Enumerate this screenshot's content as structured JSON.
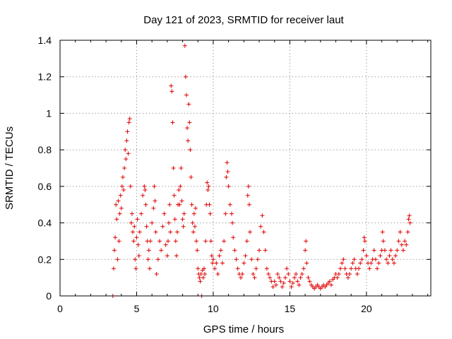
{
  "chart_data": {
    "type": "scatter",
    "title": "Day 121 of 2023, SRMTID for receiver laut",
    "xlabel": "GPS time / hours",
    "ylabel": "SRMTID / TECUs",
    "xlim": [
      0,
      24.2
    ],
    "ylim": [
      0,
      1.4
    ],
    "x_ticks": [
      0,
      5,
      10,
      15,
      20
    ],
    "x_tick_labels": [
      "0",
      "5",
      "10",
      "15",
      "20"
    ],
    "y_ticks": [
      0,
      0.2,
      0.4,
      0.6,
      0.8,
      1.0,
      1.2,
      1.4
    ],
    "y_tick_labels": [
      "0",
      "0.2",
      "0.4",
      "0.6",
      "0.8",
      "1",
      "1.2",
      "1.4"
    ],
    "grid": true,
    "marker": "+",
    "series": [
      {
        "name": "SRMTID",
        "color": "#e00000",
        "points": [
          [
            3.45,
            0.0
          ],
          [
            3.5,
            0.15
          ],
          [
            3.55,
            0.25
          ],
          [
            3.6,
            0.32
          ],
          [
            3.65,
            0.5
          ],
          [
            3.7,
            0.42
          ],
          [
            3.75,
            0.2
          ],
          [
            3.8,
            0.52
          ],
          [
            3.85,
            0.3
          ],
          [
            3.9,
            0.45
          ],
          [
            3.95,
            0.55
          ],
          [
            4.0,
            0.48
          ],
          [
            4.05,
            0.6
          ],
          [
            4.1,
            0.65
          ],
          [
            4.15,
            0.58
          ],
          [
            4.2,
            0.7
          ],
          [
            4.25,
            0.8
          ],
          [
            4.3,
            0.75
          ],
          [
            4.35,
            0.85
          ],
          [
            4.4,
            0.9
          ],
          [
            4.45,
            0.78
          ],
          [
            4.5,
            0.95
          ],
          [
            4.55,
            0.97
          ],
          [
            4.6,
            0.6
          ],
          [
            4.65,
            0.4
          ],
          [
            4.7,
            0.45
          ],
          [
            4.75,
            0.35
          ],
          [
            4.8,
            0.3
          ],
          [
            4.85,
            0.38
          ],
          [
            4.9,
            0.2
          ],
          [
            4.95,
            0.15
          ],
          [
            5.0,
            0.32
          ],
          [
            5.05,
            0.42
          ],
          [
            5.1,
            0.28
          ],
          [
            5.15,
            0.22
          ],
          [
            5.2,
            0.35
          ],
          [
            5.3,
            0.45
          ],
          [
            5.4,
            0.55
          ],
          [
            5.5,
            0.6
          ],
          [
            5.55,
            0.58
          ],
          [
            5.6,
            0.5
          ],
          [
            5.65,
            0.38
          ],
          [
            5.7,
            0.3
          ],
          [
            5.75,
            0.2
          ],
          [
            5.8,
            0.25
          ],
          [
            5.85,
            0.15
          ],
          [
            5.9,
            0.3
          ],
          [
            6.0,
            0.4
          ],
          [
            6.1,
            0.48
          ],
          [
            6.15,
            0.6
          ],
          [
            6.2,
            0.52
          ],
          [
            6.25,
            0.35
          ],
          [
            6.3,
            0.12
          ],
          [
            6.4,
            0.2
          ],
          [
            6.5,
            0.3
          ],
          [
            6.6,
            0.25
          ],
          [
            6.7,
            0.38
          ],
          [
            6.8,
            0.45
          ],
          [
            6.9,
            0.28
          ],
          [
            7.0,
            0.22
          ],
          [
            7.05,
            0.3
          ],
          [
            7.1,
            0.4
          ],
          [
            7.15,
            0.5
          ],
          [
            7.2,
            0.35
          ],
          [
            7.25,
            1.15
          ],
          [
            7.3,
            1.12
          ],
          [
            7.35,
            0.95
          ],
          [
            7.4,
            0.7
          ],
          [
            7.45,
            0.55
          ],
          [
            7.5,
            0.42
          ],
          [
            7.55,
            0.3
          ],
          [
            7.6,
            0.22
          ],
          [
            7.65,
            0.35
          ],
          [
            7.7,
            0.5
          ],
          [
            7.75,
            0.58
          ],
          [
            7.8,
            0.5
          ],
          [
            7.85,
            0.6
          ],
          [
            7.9,
            0.7
          ],
          [
            7.95,
            0.52
          ],
          [
            8.0,
            0.42
          ],
          [
            8.05,
            0.38
          ],
          [
            8.1,
            0.45
          ],
          [
            8.15,
            1.37
          ],
          [
            8.2,
            1.2
          ],
          [
            8.25,
            1.1
          ],
          [
            8.3,
            0.92
          ],
          [
            8.35,
            0.85
          ],
          [
            8.4,
            1.05
          ],
          [
            8.45,
            0.95
          ],
          [
            8.5,
            0.8
          ],
          [
            8.55,
            0.65
          ],
          [
            8.6,
            0.5
          ],
          [
            8.65,
            0.4
          ],
          [
            8.7,
            0.35
          ],
          [
            8.75,
            0.45
          ],
          [
            8.8,
            0.38
          ],
          [
            8.85,
            0.48
          ],
          [
            8.9,
            0.3
          ],
          [
            8.95,
            0.25
          ],
          [
            9.0,
            0.15
          ],
          [
            9.05,
            0.12
          ],
          [
            9.1,
            0.1
          ],
          [
            9.15,
            0.08
          ],
          [
            9.2,
            0.12
          ],
          [
            9.25,
            0.0
          ],
          [
            9.3,
            0.14
          ],
          [
            9.35,
            0.1
          ],
          [
            9.4,
            0.15
          ],
          [
            9.45,
            0.12
          ],
          [
            9.5,
            0.3
          ],
          [
            9.55,
            0.5
          ],
          [
            9.6,
            0.62
          ],
          [
            9.65,
            0.58
          ],
          [
            9.7,
            0.6
          ],
          [
            9.75,
            0.5
          ],
          [
            9.8,
            0.45
          ],
          [
            9.85,
            0.3
          ],
          [
            9.9,
            0.22
          ],
          [
            9.95,
            0.18
          ],
          [
            10.0,
            0.2
          ],
          [
            10.1,
            0.15
          ],
          [
            10.2,
            0.18
          ],
          [
            10.3,
            0.12
          ],
          [
            10.4,
            0.22
          ],
          [
            10.5,
            0.25
          ],
          [
            10.6,
            0.18
          ],
          [
            10.7,
            0.3
          ],
          [
            10.8,
            0.45
          ],
          [
            10.85,
            0.65
          ],
          [
            10.9,
            0.73
          ],
          [
            10.95,
            0.68
          ],
          [
            11.0,
            0.6
          ],
          [
            11.1,
            0.5
          ],
          [
            11.2,
            0.45
          ],
          [
            11.25,
            0.4
          ],
          [
            11.3,
            0.32
          ],
          [
            11.4,
            0.25
          ],
          [
            11.5,
            0.2
          ],
          [
            11.6,
            0.15
          ],
          [
            11.7,
            0.12
          ],
          [
            11.8,
            0.1
          ],
          [
            11.9,
            0.12
          ],
          [
            12.0,
            0.18
          ],
          [
            12.1,
            0.22
          ],
          [
            12.2,
            0.3
          ],
          [
            12.25,
            0.55
          ],
          [
            12.3,
            0.6
          ],
          [
            12.35,
            0.5
          ],
          [
            12.4,
            0.35
          ],
          [
            12.5,
            0.2
          ],
          [
            12.6,
            0.12
          ],
          [
            12.7,
            0.1
          ],
          [
            12.8,
            0.15
          ],
          [
            12.9,
            0.2
          ],
          [
            13.0,
            0.25
          ],
          [
            13.1,
            0.38
          ],
          [
            13.2,
            0.44
          ],
          [
            13.3,
            0.35
          ],
          [
            13.4,
            0.25
          ],
          [
            13.5,
            0.15
          ],
          [
            13.6,
            0.12
          ],
          [
            13.7,
            0.1
          ],
          [
            13.8,
            0.08
          ],
          [
            13.9,
            0.05
          ],
          [
            14.0,
            0.08
          ],
          [
            14.1,
            0.06
          ],
          [
            14.2,
            0.12
          ],
          [
            14.3,
            0.1
          ],
          [
            14.4,
            0.08
          ],
          [
            14.5,
            0.05
          ],
          [
            14.6,
            0.07
          ],
          [
            14.7,
            0.1
          ],
          [
            14.8,
            0.15
          ],
          [
            14.9,
            0.12
          ],
          [
            15.0,
            0.08
          ],
          [
            15.1,
            0.05
          ],
          [
            15.2,
            0.07
          ],
          [
            15.3,
            0.1
          ],
          [
            15.4,
            0.12
          ],
          [
            15.5,
            0.08
          ],
          [
            15.6,
            0.06
          ],
          [
            15.7,
            0.1
          ],
          [
            15.8,
            0.12
          ],
          [
            15.9,
            0.15
          ],
          [
            16.0,
            0.25
          ],
          [
            16.05,
            0.3
          ],
          [
            16.1,
            0.18
          ],
          [
            16.2,
            0.1
          ],
          [
            16.3,
            0.08
          ],
          [
            16.4,
            0.06
          ],
          [
            16.5,
            0.05
          ],
          [
            16.6,
            0.04
          ],
          [
            16.7,
            0.05
          ],
          [
            16.8,
            0.06
          ],
          [
            16.9,
            0.05
          ],
          [
            17.0,
            0.04
          ],
          [
            17.1,
            0.05
          ],
          [
            17.2,
            0.06
          ],
          [
            17.3,
            0.05
          ],
          [
            17.4,
            0.06
          ],
          [
            17.5,
            0.07
          ],
          [
            17.6,
            0.08
          ],
          [
            17.7,
            0.06
          ],
          [
            17.8,
            0.09
          ],
          [
            17.9,
            0.1
          ],
          [
            18.0,
            0.12
          ],
          [
            18.1,
            0.1
          ],
          [
            18.2,
            0.12
          ],
          [
            18.3,
            0.15
          ],
          [
            18.4,
            0.18
          ],
          [
            18.5,
            0.2
          ],
          [
            18.6,
            0.15
          ],
          [
            18.7,
            0.12
          ],
          [
            18.8,
            0.1
          ],
          [
            18.9,
            0.12
          ],
          [
            19.0,
            0.15
          ],
          [
            19.1,
            0.18
          ],
          [
            19.2,
            0.2
          ],
          [
            19.3,
            0.15
          ],
          [
            19.4,
            0.12
          ],
          [
            19.5,
            0.15
          ],
          [
            19.6,
            0.18
          ],
          [
            19.7,
            0.2
          ],
          [
            19.8,
            0.25
          ],
          [
            19.85,
            0.32
          ],
          [
            19.9,
            0.3
          ],
          [
            20.0,
            0.22
          ],
          [
            20.1,
            0.18
          ],
          [
            20.2,
            0.15
          ],
          [
            20.3,
            0.18
          ],
          [
            20.4,
            0.2
          ],
          [
            20.5,
            0.25
          ],
          [
            20.6,
            0.2
          ],
          [
            20.7,
            0.15
          ],
          [
            20.8,
            0.18
          ],
          [
            20.9,
            0.22
          ],
          [
            21.0,
            0.25
          ],
          [
            21.05,
            0.35
          ],
          [
            21.1,
            0.3
          ],
          [
            21.2,
            0.25
          ],
          [
            21.3,
            0.2
          ],
          [
            21.4,
            0.18
          ],
          [
            21.5,
            0.22
          ],
          [
            21.6,
            0.25
          ],
          [
            21.7,
            0.2
          ],
          [
            21.8,
            0.18
          ],
          [
            21.9,
            0.22
          ],
          [
            22.0,
            0.25
          ],
          [
            22.1,
            0.3
          ],
          [
            22.2,
            0.35
          ],
          [
            22.3,
            0.28
          ],
          [
            22.4,
            0.25
          ],
          [
            22.5,
            0.3
          ],
          [
            22.6,
            0.28
          ],
          [
            22.7,
            0.35
          ],
          [
            22.75,
            0.42
          ],
          [
            22.8,
            0.44
          ],
          [
            22.85,
            0.4
          ]
        ]
      }
    ]
  }
}
